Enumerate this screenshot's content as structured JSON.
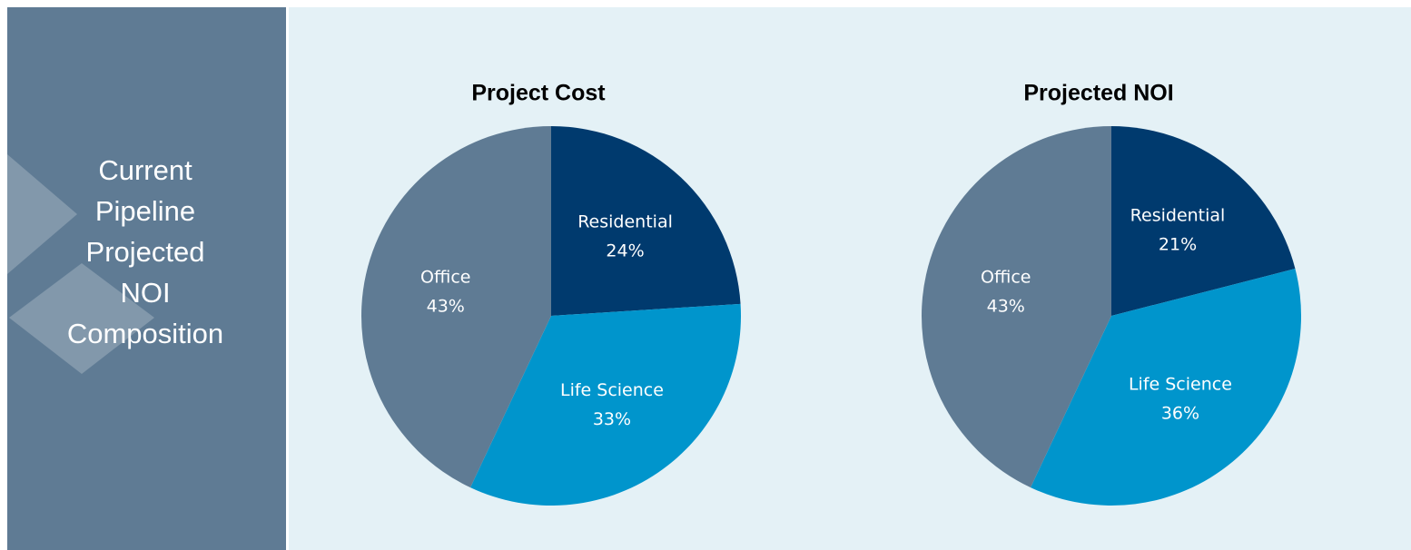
{
  "sidebar": {
    "title_lines": [
      "Current",
      "Pipeline",
      "Projected",
      "NOI",
      "Composition"
    ]
  },
  "chart_data": [
    {
      "type": "pie",
      "title": "Project Cost",
      "categories": [
        "Residential",
        "Life Science",
        "Office"
      ],
      "values": [
        24,
        33,
        43
      ],
      "value_labels": [
        "24%",
        "33%",
        "43%"
      ],
      "colors": [
        "#003a6e",
        "#0095cc",
        "#5f7b94"
      ]
    },
    {
      "type": "pie",
      "title": "Projected NOI",
      "categories": [
        "Residential",
        "Life Science",
        "Office"
      ],
      "values": [
        21,
        36,
        43
      ],
      "value_labels": [
        "21%",
        "36%",
        "43%"
      ],
      "colors": [
        "#003a6e",
        "#0095cc",
        "#5f7b94"
      ]
    }
  ]
}
